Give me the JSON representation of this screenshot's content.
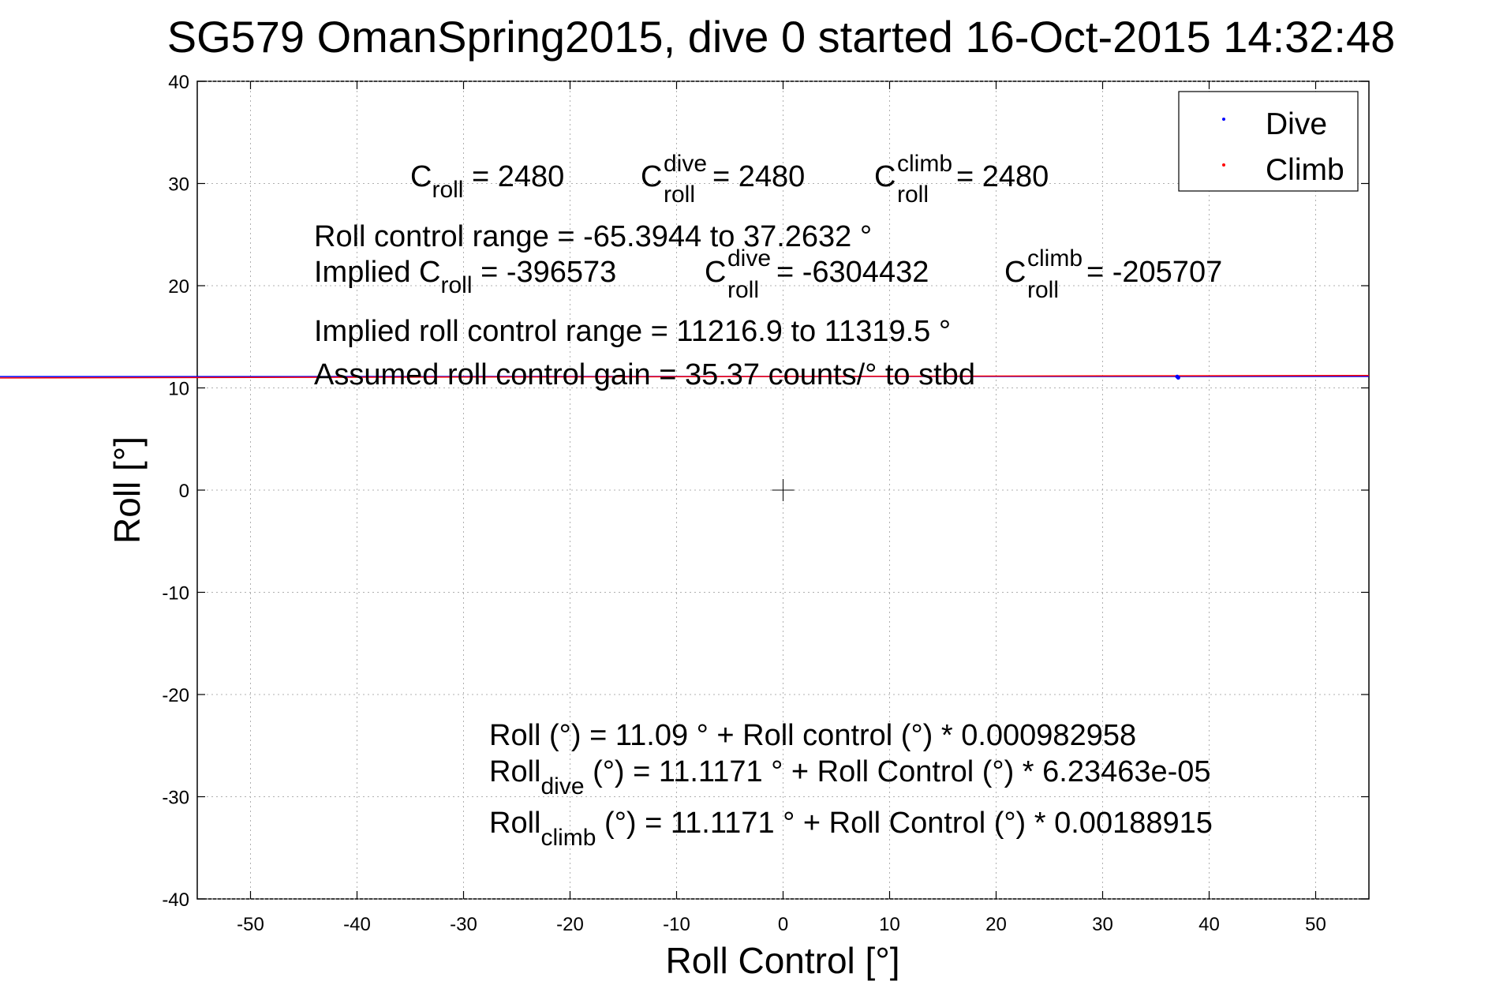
{
  "chart_data": {
    "type": "scatter",
    "title": "SG579 OmanSpring2015, dive 0 started 16-Oct-2015 14:32:48",
    "xlabel": "Roll Control [°]",
    "ylabel": "Roll [°]",
    "xlim": [
      -55,
      55
    ],
    "ylim": [
      -40,
      40
    ],
    "xticks": [
      -50,
      -40,
      -30,
      -20,
      -10,
      0,
      10,
      20,
      30,
      40,
      50
    ],
    "yticks": [
      -40,
      -30,
      -20,
      -10,
      0,
      10,
      20,
      30,
      40
    ],
    "grid": true,
    "legend_position": "top-right",
    "series": [
      {
        "name": "Dive",
        "color": "#0000ff",
        "marker": "dot",
        "points": [
          [
            37.1,
            11.0
          ],
          [
            37.0,
            11.1
          ]
        ],
        "fit_line": {
          "intercept": 11.1171,
          "slope": 6.23463e-05
        }
      },
      {
        "name": "Climb",
        "color": "#ff0000",
        "marker": "dot",
        "points": [
          [
            0.3,
            11.1
          ]
        ],
        "fit_line": {
          "intercept": 11.1171,
          "slope": 0.00188915
        }
      }
    ],
    "center_marker": [
      0,
      0
    ],
    "annotations": {
      "c_roll": {
        "base": "C",
        "sub": "roll",
        "value": " = 2480"
      },
      "c_roll_dive": {
        "base": "C",
        "sup": "dive",
        "sub": "roll",
        "value": " = 2480"
      },
      "c_roll_climb": {
        "base": "C",
        "sup": "climb",
        "sub": "roll",
        "value": " = 2480"
      },
      "roll_control_range": "Roll control range = -65.3944 to 37.2632 °",
      "implied_c_roll": {
        "base": "Implied C",
        "sub": "roll",
        "value": " = -396573"
      },
      "implied_c_roll_dive": {
        "base": "C",
        "sup": "dive",
        "sub": "roll",
        "value": " = -6304432"
      },
      "implied_c_roll_climb": {
        "base": "C",
        "sup": "climb",
        "sub": "roll",
        "value": " = -205707"
      },
      "implied_range": "Implied roll control range = 11216.9 to 11319.5 °",
      "assumed_gain": "Assumed roll control gain = 35.37 counts/° to stbd",
      "fit_all": "Roll (°) = 11.09 ° + Roll control (°) * 0.000982958",
      "fit_dive": {
        "base": "Roll",
        "sub": "dive",
        "value": " (°) = 11.1171 ° + Roll Control (°) * 6.23463e-05"
      },
      "fit_climb": {
        "base": "Roll",
        "sub": "climb",
        "value": " (°) = 11.1171 ° + Roll Control (°) * 0.00188915"
      }
    }
  }
}
